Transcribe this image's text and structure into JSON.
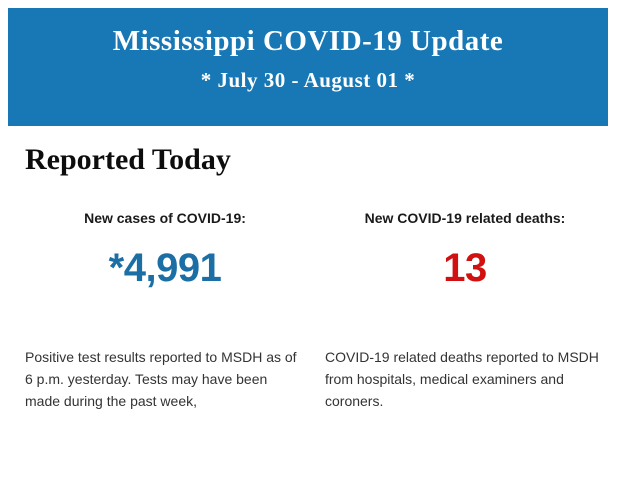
{
  "header": {
    "title": "Mississippi COVID-19 Update",
    "date_range": "* July 30 - August 01 *",
    "background_color": "#1778b5",
    "text_color": "#ffffff"
  },
  "main": {
    "section_title": "Reported Today",
    "stats": {
      "cases": {
        "label": "New cases of COVID-19:",
        "value": "*4,991",
        "value_color": "#1b6fa5",
        "description": "Positive test results reported to MSDH as of 6 p.m. yesterday. Tests may have been made during the past week,"
      },
      "deaths": {
        "label": "New COVID-19 related deaths:",
        "value": "13",
        "value_color": "#d11111",
        "description": "COVID-19 related deaths reported to MSDH from hospitals, medical examiners and coroners."
      }
    }
  }
}
